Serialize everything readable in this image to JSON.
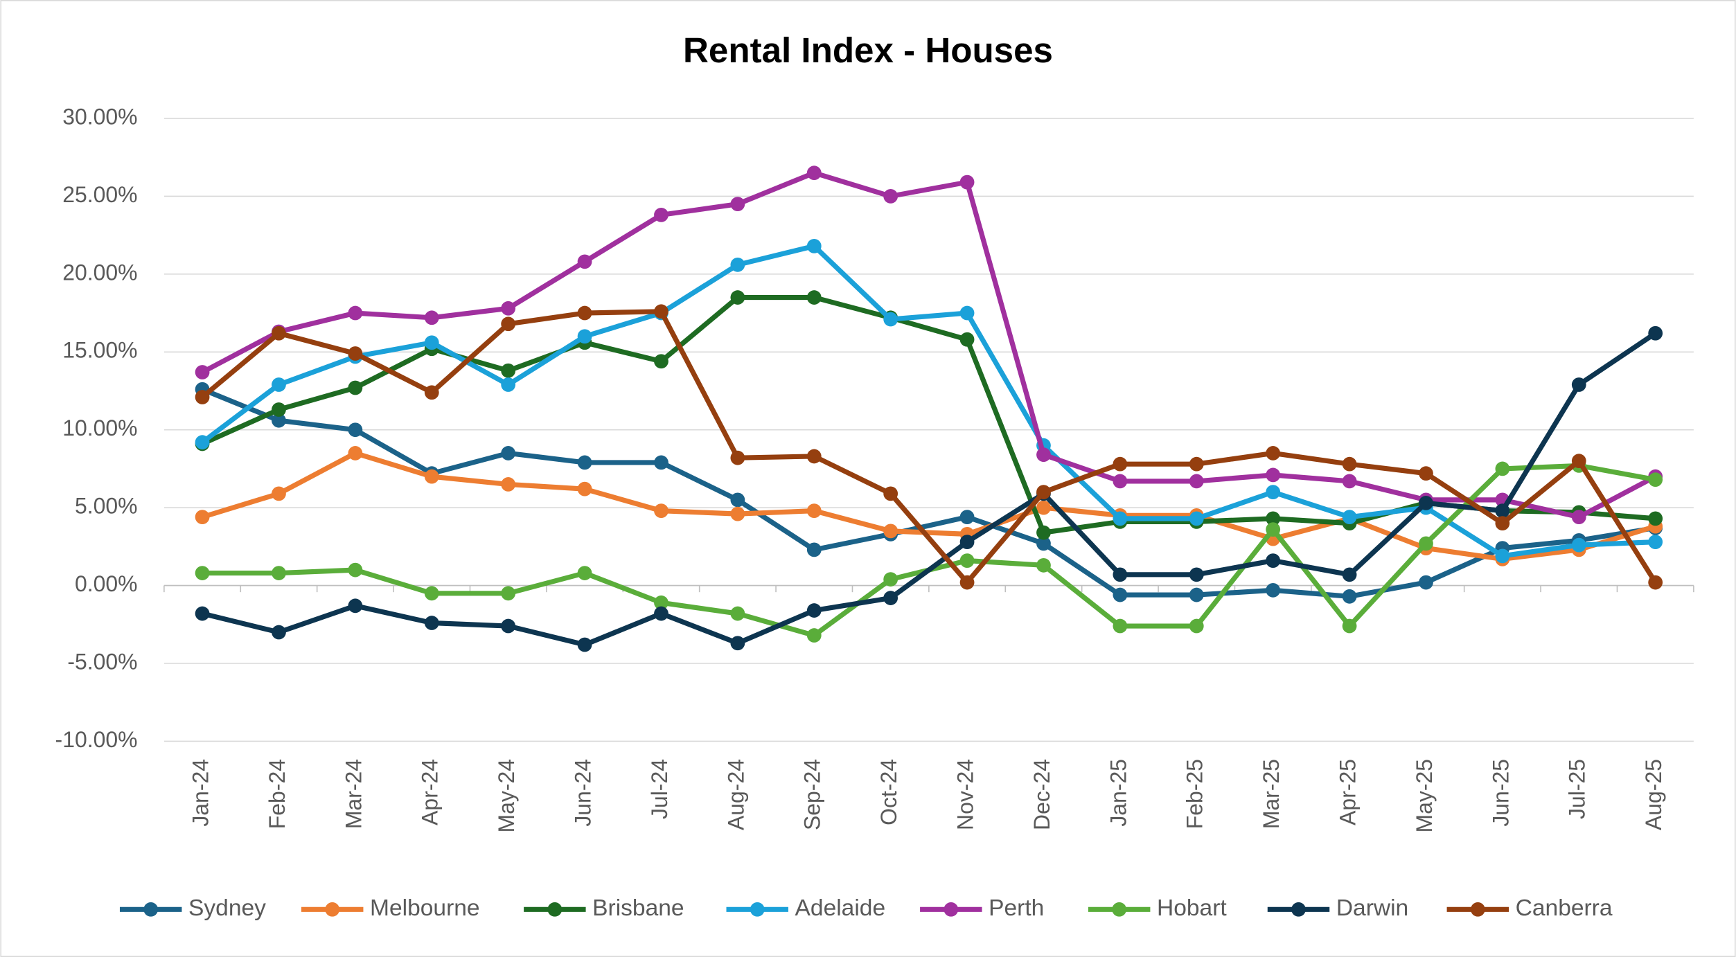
{
  "chart_data": {
    "type": "line",
    "title": "Rental Index - Houses",
    "categories": [
      "Jan-24",
      "Feb-24",
      "Mar-24",
      "Apr-24",
      "May-24",
      "Jun-24",
      "Jul-24",
      "Aug-24",
      "Sep-24",
      "Oct-24",
      "Nov-24",
      "Dec-24",
      "Jan-25",
      "Feb-25",
      "Mar-25",
      "Apr-25",
      "May-25",
      "Jun-25",
      "Jul-25",
      "Aug-25"
    ],
    "series": [
      {
        "name": "Sydney",
        "color": "#1b6289",
        "values": [
          12.6,
          10.6,
          10.0,
          7.2,
          8.5,
          7.9,
          7.9,
          5.5,
          2.3,
          3.3,
          4.4,
          2.7,
          -0.6,
          -0.6,
          -0.3,
          -0.7,
          0.2,
          2.4,
          2.9,
          3.7
        ]
      },
      {
        "name": "Melbourne",
        "color": "#ed7d31",
        "values": [
          4.4,
          5.9,
          8.5,
          7.0,
          6.5,
          6.2,
          4.8,
          4.6,
          4.8,
          3.5,
          3.3,
          5.0,
          4.5,
          4.5,
          3.0,
          4.3,
          2.4,
          1.7,
          2.3,
          3.8
        ]
      },
      {
        "name": "Brisbane",
        "color": "#1e6b22",
        "values": [
          9.1,
          11.3,
          12.7,
          15.2,
          13.8,
          15.6,
          14.4,
          18.5,
          18.5,
          17.2,
          15.8,
          3.4,
          4.1,
          4.1,
          4.3,
          4.0,
          5.3,
          4.8,
          4.7,
          4.3
        ]
      },
      {
        "name": "Adelaide",
        "color": "#1ba1d9",
        "values": [
          9.2,
          12.9,
          14.7,
          15.6,
          12.9,
          16.0,
          17.5,
          20.6,
          21.8,
          17.1,
          17.5,
          9.0,
          4.3,
          4.3,
          6.0,
          4.4,
          5.0,
          1.9,
          2.6,
          2.8
        ]
      },
      {
        "name": "Perth",
        "color": "#a0309e",
        "values": [
          13.7,
          16.3,
          17.5,
          17.2,
          17.8,
          20.8,
          23.8,
          24.5,
          26.5,
          25.0,
          25.9,
          8.4,
          6.7,
          6.7,
          7.1,
          6.7,
          5.5,
          5.5,
          4.4,
          7.0
        ]
      },
      {
        "name": "Hobart",
        "color": "#5aad3a",
        "values": [
          0.8,
          0.8,
          1.0,
          -0.5,
          -0.5,
          0.8,
          -1.1,
          -1.8,
          -3.2,
          0.4,
          1.6,
          1.3,
          -2.6,
          -2.6,
          3.6,
          -2.6,
          2.7,
          7.5,
          7.7,
          6.8
        ]
      },
      {
        "name": "Darwin",
        "color": "#0d3550",
        "values": [
          -1.8,
          -3.0,
          -1.3,
          -2.4,
          -2.6,
          -3.8,
          -1.8,
          -3.7,
          -1.6,
          -0.8,
          2.8,
          5.9,
          0.7,
          0.7,
          1.6,
          0.7,
          5.3,
          4.8,
          12.9,
          16.2
        ]
      },
      {
        "name": "Canberra",
        "color": "#953f0f",
        "values": [
          12.1,
          16.2,
          14.9,
          12.4,
          16.8,
          17.5,
          17.6,
          8.2,
          8.3,
          5.9,
          0.2,
          6.0,
          7.8,
          7.8,
          8.5,
          7.8,
          7.2,
          4.0,
          8.0,
          0.2
        ]
      }
    ],
    "ylim": [
      -10,
      30
    ],
    "yticks": [
      {
        "value": -10,
        "label": "-10.00%"
      },
      {
        "value": -5,
        "label": "-5.00%"
      },
      {
        "value": 0,
        "label": "0.00%"
      },
      {
        "value": 5,
        "label": "5.00%"
      },
      {
        "value": 10,
        "label": "10.00%"
      },
      {
        "value": 15,
        "label": "15.00%"
      },
      {
        "value": 20,
        "label": "20.00%"
      },
      {
        "value": 25,
        "label": "25.00%"
      },
      {
        "value": 30,
        "label": "30.00%"
      }
    ],
    "grid": true,
    "legend": "bottom"
  }
}
